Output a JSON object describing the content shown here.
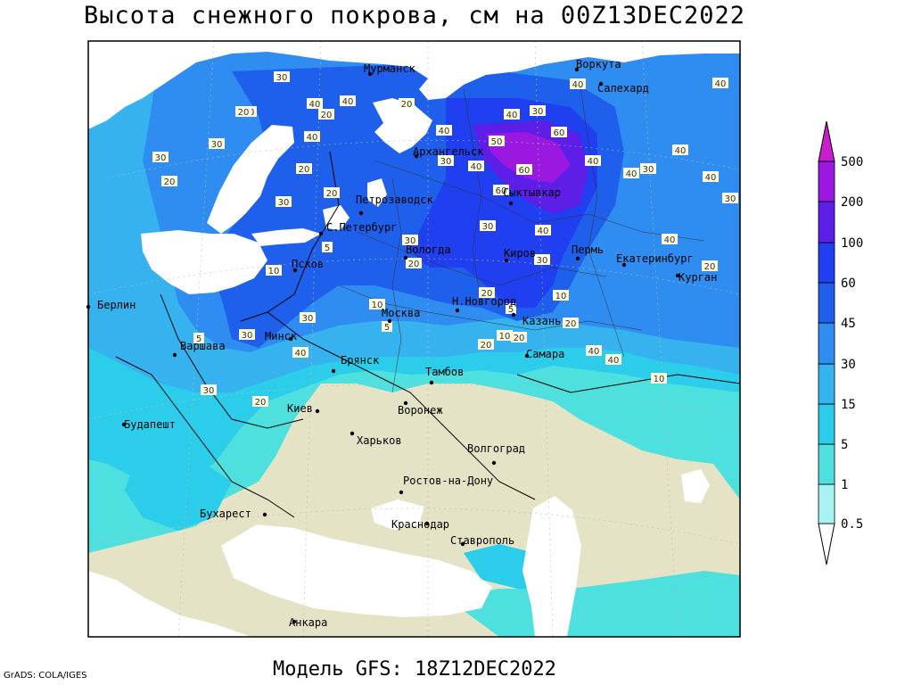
{
  "title": "Высота снежного покрова, см на 00Z13DEC2022",
  "subtitle": "Модель GFS: 18Z12DEC2022",
  "credit": "GrADS: COLA/IGES",
  "colors": {
    "land": "#e4e3c6",
    "water": "#ffffff",
    "s0_5": "#a8f2f4",
    "s1": "#4de0de",
    "s5": "#2ccdea",
    "s15": "#36b2ee",
    "s30": "#2f8cf0",
    "s45": "#1e60ec",
    "s60": "#1f3ff0",
    "s100": "#5d1fe8",
    "s200": "#9a18e0",
    "s500": "#c81ed0"
  },
  "legend": {
    "levels": [
      "0.5",
      "1",
      "5",
      "15",
      "30",
      "45",
      "60",
      "100",
      "200",
      "500"
    ]
  },
  "cities": [
    {
      "name": "Мурманск"
    },
    {
      "name": "Воркута"
    },
    {
      "name": "Салехард"
    },
    {
      "name": "Архангельск"
    },
    {
      "name": "Сыктывкар"
    },
    {
      "name": "Петрозаводск"
    },
    {
      "name": "С.Петербург"
    },
    {
      "name": "Вологда"
    },
    {
      "name": "Киров"
    },
    {
      "name": "Пермь"
    },
    {
      "name": "Екатеринбург"
    },
    {
      "name": "Курган"
    },
    {
      "name": "Псков"
    },
    {
      "name": "Н.Новгород"
    },
    {
      "name": "Казань"
    },
    {
      "name": "Берлин"
    },
    {
      "name": "Москва"
    },
    {
      "name": "Минск"
    },
    {
      "name": "Варшава"
    },
    {
      "name": "Брянск"
    },
    {
      "name": "Тамбов"
    },
    {
      "name": "Самара"
    },
    {
      "name": "Киев"
    },
    {
      "name": "Воронеж"
    },
    {
      "name": "Будапешт"
    },
    {
      "name": "Харьков"
    },
    {
      "name": "Волгоград"
    },
    {
      "name": "Ростов-на-Дону"
    },
    {
      "name": "Бухарест"
    },
    {
      "name": "Краснодар"
    },
    {
      "name": "Ставрополь"
    },
    {
      "name": "Анкара"
    }
  ],
  "contour_labels": [
    "30",
    "20",
    "40",
    "20",
    "20",
    "30",
    "30",
    "40",
    "40",
    "40",
    "40",
    "30",
    "40",
    "60",
    "50",
    "60",
    "30",
    "40",
    "60",
    "40",
    "40",
    "40",
    "20",
    "30",
    "40",
    "40",
    "30",
    "30",
    "20",
    "20",
    "20",
    "30",
    "30",
    "20",
    "40",
    "30",
    "40",
    "20",
    "10",
    "5",
    "10",
    "30",
    "20",
    "20",
    "10",
    "5",
    "20",
    "10",
    "5",
    "20",
    "40",
    "40",
    "10",
    "5",
    "30",
    "40",
    "30",
    "20"
  ]
}
